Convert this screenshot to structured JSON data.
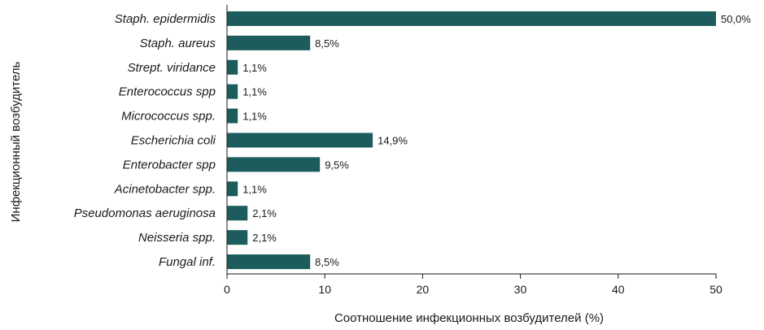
{
  "chart_data": {
    "type": "bar",
    "orientation": "horizontal",
    "categories": [
      "Staph. epidermidis",
      "Staph. aureus",
      "Strept. viridance",
      "Enterococcus spp",
      "Micrococcus spp.",
      "Escherichia coli",
      "Enterobacter spp",
      "Acinetobacter spp.",
      "Pseudomonas aeruginosa",
      "Neisseria spp.",
      "Fungal inf."
    ],
    "values": [
      50.0,
      8.5,
      1.1,
      1.1,
      1.1,
      14.9,
      9.5,
      1.1,
      2.1,
      2.1,
      8.5
    ],
    "value_labels": [
      "50,0%",
      "8,5%",
      "1,1%",
      "1,1%",
      "1,1%",
      "14,9%",
      "9,5%",
      "1,1%",
      "2,1%",
      "2,1%",
      "8,5%"
    ],
    "xlabel": "Соотношение инфекционных возбудителей (%)",
    "ylabel": "Инфекционный возбудитель",
    "xlim": [
      0,
      50
    ],
    "xticks": [
      0,
      10,
      20,
      30,
      40,
      50
    ],
    "grid": false,
    "legend": "none",
    "bar_color": "#1d5c5c"
  }
}
